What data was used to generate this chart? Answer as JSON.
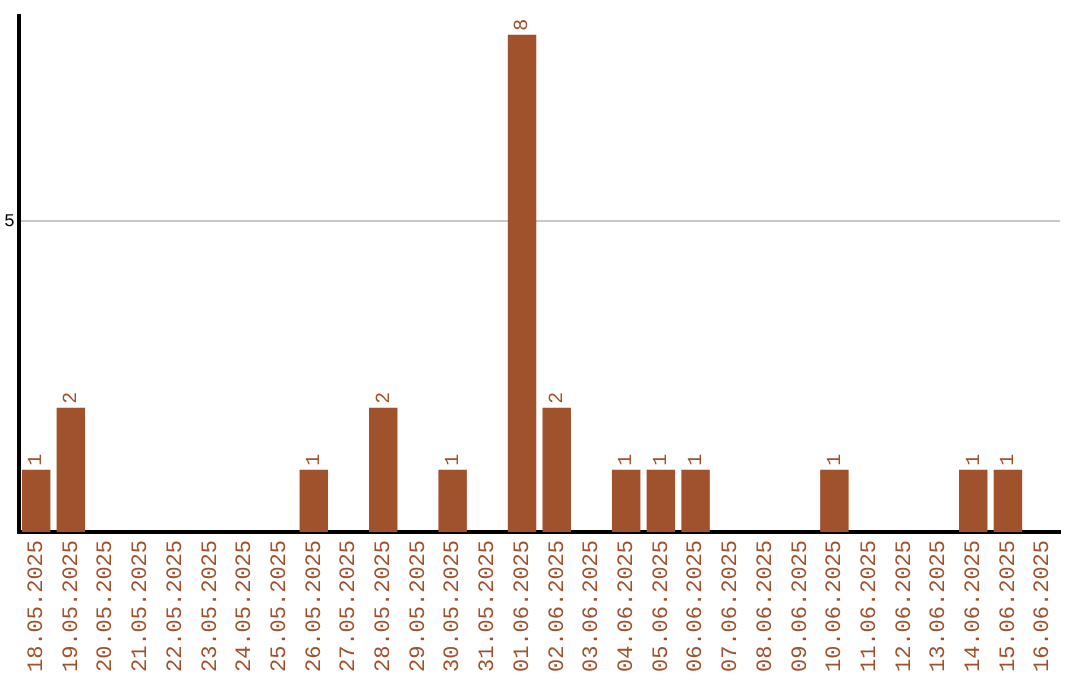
{
  "chart_data": {
    "type": "bar",
    "categories": [
      "18.05.2025",
      "19.05.2025",
      "20.05.2025",
      "21.05.2025",
      "22.05.2025",
      "23.05.2025",
      "24.05.2025",
      "25.05.2025",
      "26.05.2025",
      "27.05.2025",
      "28.05.2025",
      "29.05.2025",
      "30.05.2025",
      "31.05.2025",
      "01.06.2025",
      "02.06.2025",
      "03.06.2025",
      "04.06.2025",
      "05.06.2025",
      "06.06.2025",
      "07.06.2025",
      "08.06.2025",
      "09.06.2025",
      "10.06.2025",
      "11.06.2025",
      "12.06.2025",
      "13.06.2025",
      "14.06.2025",
      "15.06.2025",
      "16.06.2025"
    ],
    "values": [
      1,
      2,
      0,
      0,
      0,
      0,
      0,
      0,
      1,
      0,
      2,
      0,
      1,
      0,
      8,
      2,
      0,
      1,
      1,
      1,
      0,
      0,
      0,
      1,
      0,
      0,
      0,
      1,
      1,
      0
    ],
    "value_labels": [
      "1",
      "2",
      null,
      null,
      null,
      null,
      null,
      null,
      "1",
      null,
      "2",
      null,
      "1",
      null,
      "8",
      "2",
      null,
      "1",
      "1",
      "1",
      null,
      null,
      null,
      "1",
      null,
      null,
      null,
      "1",
      "1",
      null
    ],
    "color": "#a0522d",
    "ylim": [
      0,
      8.3
    ],
    "yticks": [
      5
    ],
    "grid": "y",
    "legend": false
  }
}
